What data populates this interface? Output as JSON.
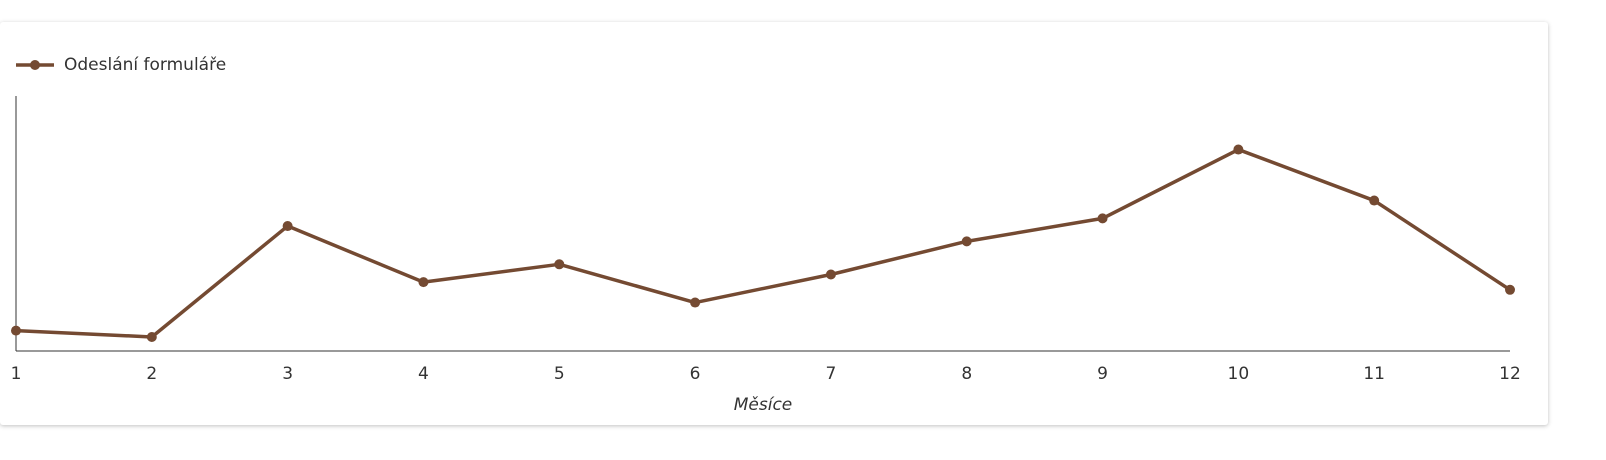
{
  "chart_data": {
    "type": "line",
    "x_label": "Měsíce",
    "x": [
      1,
      2,
      3,
      4,
      5,
      6,
      7,
      8,
      9,
      10,
      11,
      12
    ],
    "xlim": [
      1,
      12
    ],
    "xticks": [
      1,
      2,
      3,
      4,
      5,
      6,
      7,
      8,
      9,
      10,
      11,
      12
    ],
    "ylim": [
      0,
      100
    ],
    "legend": "top-left",
    "series": [
      {
        "name": "Odeslání formuláře",
        "color": "#744a32",
        "values": [
          8,
          5.5,
          49,
          27,
          34,
          19,
          30,
          43,
          52,
          79,
          59,
          24
        ]
      }
    ]
  }
}
